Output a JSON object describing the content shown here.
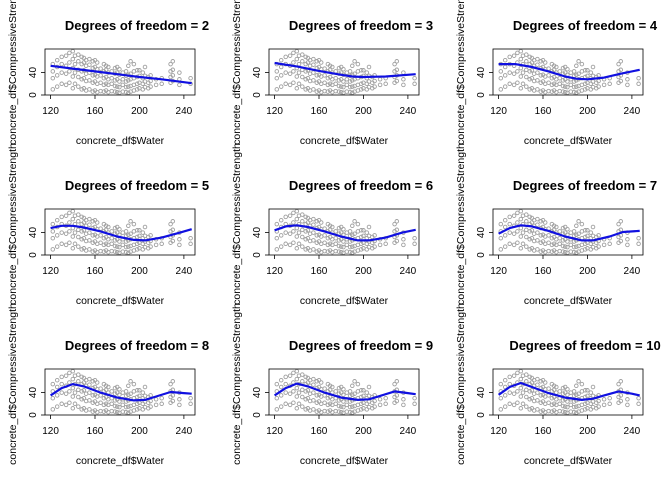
{
  "chart_data": {
    "type": "scatter",
    "shared": {
      "xlabel": "concrete_df$Water",
      "ylabel": "concrete_df$CompressiveStrength",
      "xlim": [
        115,
        250
      ],
      "ylim": [
        0,
        82
      ],
      "xticks": [
        120,
        160,
        200,
        240
      ],
      "yticks": [
        0,
        40
      ],
      "point_color": "#a0a0a0",
      "fit_color": "#1010e0",
      "scatter_x": [
        122,
        126,
        130,
        134,
        137,
        140,
        142,
        145,
        148,
        150,
        152,
        155,
        158,
        160,
        162,
        165,
        168,
        170,
        172,
        175,
        178,
        180,
        182,
        185,
        188,
        190,
        192,
        195,
        198,
        200,
        203,
        205,
        208,
        210,
        215,
        220,
        228,
        230,
        236,
        246
      ],
      "scatter_y": [
        [
          10,
          30,
          42,
          55
        ],
        [
          15,
          35,
          50,
          62
        ],
        [
          20,
          40,
          55,
          68
        ],
        [
          18,
          38,
          52,
          70
        ],
        [
          22,
          42,
          58,
          75
        ],
        [
          12,
          33,
          48,
          64,
          78
        ],
        [
          20,
          40,
          55,
          70
        ],
        [
          15,
          32,
          45,
          60,
          72
        ],
        [
          10,
          28,
          42,
          55,
          68
        ],
        [
          12,
          30,
          44,
          58,
          66
        ],
        [
          8,
          25,
          38,
          52,
          62
        ],
        [
          10,
          26,
          40,
          54,
          64
        ],
        [
          6,
          22,
          35,
          48,
          60
        ],
        [
          8,
          24,
          36,
          50,
          62
        ],
        [
          5,
          20,
          33,
          46,
          58
        ],
        [
          7,
          22,
          35,
          47
        ],
        [
          6,
          18,
          30,
          42,
          55
        ],
        [
          8,
          20,
          32,
          45,
          52
        ],
        [
          5,
          18,
          28,
          40,
          50
        ],
        [
          7,
          20,
          30,
          42
        ],
        [
          6,
          16,
          26,
          38,
          48
        ],
        [
          5,
          15,
          28,
          40,
          50
        ],
        [
          4,
          14,
          24,
          36,
          46
        ],
        [
          6,
          18,
          28,
          40
        ],
        [
          5,
          14,
          24,
          34,
          42
        ],
        [
          4,
          15,
          26,
          36,
          52
        ],
        [
          6,
          16,
          28,
          38,
          60
        ],
        [
          8,
          18,
          30,
          42,
          55
        ],
        [
          10,
          20,
          32,
          44
        ],
        [
          12,
          22,
          34,
          44
        ],
        [
          10,
          20,
          30,
          40
        ],
        [
          14,
          24,
          34,
          50
        ],
        [
          12,
          22,
          32
        ],
        [
          15,
          25,
          35
        ],
        [
          18,
          28
        ],
        [
          20,
          30
        ],
        [
          22,
          32,
          42,
          55
        ],
        [
          25,
          35,
          45,
          60
        ],
        [
          18,
          28,
          40
        ],
        [
          20,
          30
        ]
      ]
    },
    "panels": [
      {
        "title": "Degrees of freedom =  2",
        "fit_x": [
          120,
          140,
          160,
          180,
          200,
          220,
          247
        ],
        "fit_y": [
          52,
          47,
          42,
          37,
          32,
          28,
          21
        ]
      },
      {
        "title": "Degrees of freedom =  3",
        "fit_x": [
          120,
          140,
          160,
          180,
          190,
          200,
          220,
          247
        ],
        "fit_y": [
          57,
          51,
          43,
          36,
          33,
          32,
          33,
          37
        ]
      },
      {
        "title": "Degrees of freedom =  4",
        "fit_x": [
          120,
          135,
          150,
          165,
          180,
          190,
          200,
          215,
          230,
          247
        ],
        "fit_y": [
          55,
          55,
          50,
          42,
          33,
          29,
          28,
          31,
          38,
          45
        ]
      },
      {
        "title": "Degrees of freedom =  5",
        "fit_x": [
          120,
          130,
          140,
          150,
          165,
          180,
          195,
          205,
          220,
          235,
          247
        ],
        "fit_y": [
          48,
          52,
          52,
          49,
          42,
          33,
          27,
          26,
          31,
          39,
          46
        ]
      },
      {
        "title": "Degrees of freedom =  6",
        "fit_x": [
          120,
          130,
          140,
          150,
          165,
          180,
          195,
          205,
          220,
          235,
          247
        ],
        "fit_y": [
          44,
          51,
          53,
          50,
          42,
          33,
          26,
          26,
          31,
          40,
          45
        ]
      },
      {
        "title": "Degrees of freedom =  7",
        "fit_x": [
          120,
          130,
          140,
          150,
          165,
          180,
          195,
          205,
          220,
          232,
          247
        ],
        "fit_y": [
          38,
          48,
          53,
          51,
          43,
          33,
          26,
          26,
          33,
          41,
          43
        ]
      },
      {
        "title": "Degrees of freedom =  8",
        "fit_x": [
          120,
          130,
          140,
          150,
          165,
          180,
          195,
          205,
          215,
          228,
          240,
          247
        ],
        "fit_y": [
          35,
          48,
          55,
          51,
          40,
          31,
          26,
          27,
          33,
          41,
          39,
          38
        ]
      },
      {
        "title": "Degrees of freedom =  9",
        "fit_x": [
          120,
          130,
          140,
          150,
          165,
          180,
          195,
          205,
          215,
          228,
          240,
          247
        ],
        "fit_y": [
          35,
          48,
          56,
          51,
          40,
          31,
          27,
          28,
          34,
          42,
          39,
          37
        ]
      },
      {
        "title": "Degrees of freedom =  10",
        "fit_x": [
          120,
          130,
          140,
          150,
          165,
          180,
          195,
          205,
          215,
          228,
          240,
          247
        ],
        "fit_y": [
          36,
          50,
          57,
          50,
          39,
          31,
          27,
          29,
          35,
          42,
          38,
          35
        ]
      }
    ]
  }
}
